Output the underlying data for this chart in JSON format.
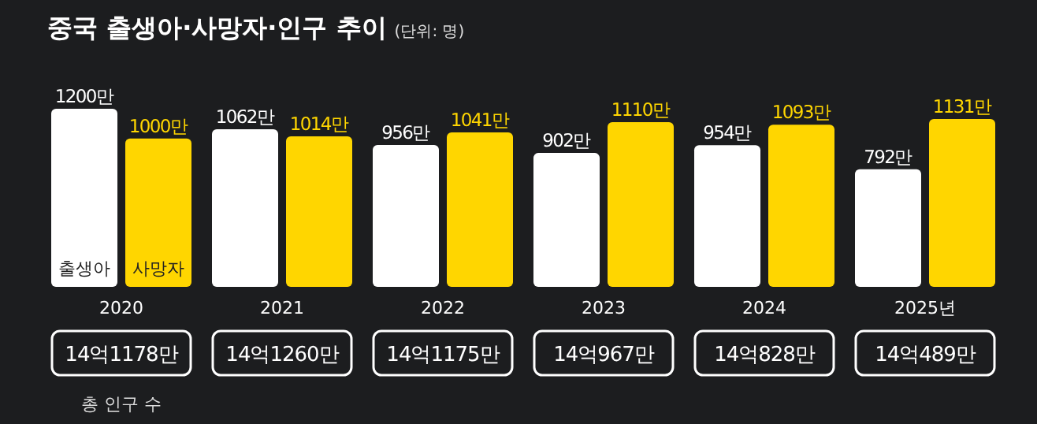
{
  "chart_data": {
    "type": "bar",
    "title": "중국 출생아·사망자·인구 추이",
    "subtitle": "(단위: 명)",
    "categories": [
      "2020",
      "2021",
      "2022",
      "2023",
      "2024",
      "2025년"
    ],
    "series": [
      {
        "name": "출생아",
        "color": "#ffffff",
        "values": [
          1200,
          1062,
          956,
          902,
          954,
          792
        ],
        "value_labels": [
          "1200만",
          "1062만",
          "956만",
          "902만",
          "954만",
          "792만"
        ]
      },
      {
        "name": "사망자",
        "color": "#ffd600",
        "values": [
          1000,
          1014,
          1041,
          1110,
          1093,
          1131
        ],
        "value_labels": [
          "1000만",
          "1014만",
          "1041만",
          "1110만",
          "1093만",
          "1131만"
        ]
      }
    ],
    "annotations": [
      "14억1178만",
      "14억1260만",
      "14억1175만",
      "14억967만",
      "14억828만",
      "14억489만",
      "총 인구 수"
    ]
  }
}
